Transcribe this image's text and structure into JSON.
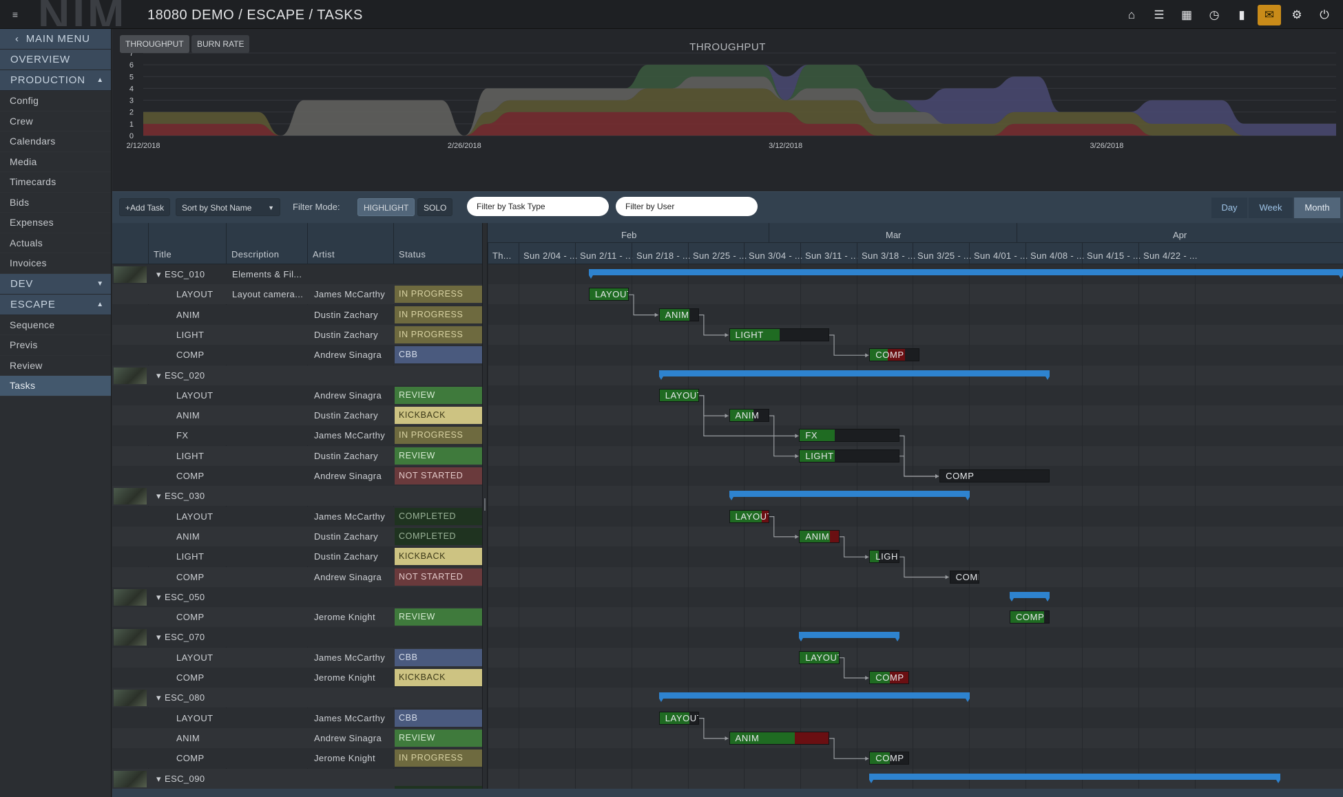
{
  "topbar": {
    "logo": "NIM",
    "breadcrumb": "18080 DEMO / ESCAPE / TASKS",
    "icons": [
      "home-icon",
      "list-icon",
      "calendar-icon",
      "clock-icon",
      "bookmark-icon",
      "mail-icon",
      "gear-icon",
      "power-icon"
    ]
  },
  "sidebar": {
    "main_menu": "MAIN MENU",
    "overview": "OVERVIEW",
    "production": "PRODUCTION",
    "production_items": [
      "Config",
      "Crew",
      "Calendars",
      "Media",
      "Timecards",
      "Bids",
      "Expenses",
      "Actuals",
      "Invoices"
    ],
    "dev": "DEV",
    "escape": "ESCAPE",
    "escape_items": [
      "Sequence",
      "Previs",
      "Review",
      "Tasks"
    ],
    "active_item": "Tasks"
  },
  "chart_tabs": {
    "throughput": "THROUGHPUT",
    "burn_rate": "BURN RATE",
    "active": "THROUGHPUT"
  },
  "chart_data": {
    "type": "area",
    "title": "THROUGHPUT",
    "x_tick_labels": [
      "2/12/2018",
      "2/26/2018",
      "3/12/2018",
      "3/26/2018"
    ],
    "ylim": [
      0,
      7
    ],
    "y_ticks": [
      0,
      1,
      2,
      3,
      4,
      5,
      6,
      7
    ],
    "grid": true,
    "x": [
      "2/12",
      "2/13",
      "2/14",
      "2/15",
      "2/16",
      "2/17",
      "2/18",
      "2/19",
      "2/20",
      "2/21",
      "2/22",
      "2/23",
      "2/24",
      "2/25",
      "2/26",
      "2/27",
      "2/28",
      "3/01",
      "3/02",
      "3/03",
      "3/04",
      "3/05",
      "3/06",
      "3/07",
      "3/08",
      "3/09",
      "3/10",
      "3/11",
      "3/12",
      "3/13",
      "3/14",
      "3/15",
      "3/16",
      "3/17",
      "3/18",
      "3/19",
      "3/20",
      "3/21",
      "3/22",
      "3/23",
      "3/24",
      "3/25",
      "3/26",
      "3/27",
      "3/28",
      "3/29",
      "3/30",
      "3/31",
      "4/01",
      "4/02",
      "4/03",
      "4/04",
      "4/05"
    ],
    "series": [
      {
        "color": "#7a2e30",
        "values": [
          1,
          1,
          1,
          1,
          1,
          1,
          0,
          0,
          0,
          0,
          0,
          0,
          0,
          0,
          0,
          1,
          2,
          2,
          2,
          2,
          2,
          2,
          2,
          2,
          2,
          2,
          2,
          2,
          2,
          1,
          1,
          1,
          0,
          0,
          0,
          0,
          0,
          0,
          1,
          1,
          1,
          1,
          1,
          1,
          0,
          0,
          0,
          0,
          0,
          0,
          0,
          0,
          0
        ]
      },
      {
        "color": "#5e5a34",
        "values": [
          1,
          1,
          1,
          1,
          1,
          1,
          0,
          0,
          0,
          0,
          0,
          0,
          0,
          0,
          0,
          1,
          1,
          1,
          1,
          1,
          1,
          1,
          2,
          2,
          2,
          2,
          2,
          2,
          1,
          2,
          2,
          2,
          1,
          1,
          1,
          1,
          1,
          1,
          1,
          1,
          1,
          1,
          1,
          1,
          1,
          1,
          1,
          1,
          0,
          0,
          0,
          0,
          0
        ]
      },
      {
        "color": "#646460",
        "values": [
          0,
          0,
          0,
          0,
          0,
          0,
          0,
          3,
          3,
          3,
          3,
          3,
          3,
          3,
          0,
          2,
          1,
          1,
          1,
          1,
          1,
          1,
          0,
          0,
          1,
          1,
          1,
          1,
          0,
          1,
          1,
          1,
          1,
          1,
          1,
          0,
          0,
          0,
          0,
          0,
          0,
          0,
          0,
          0,
          0,
          0,
          0,
          0,
          0,
          0,
          0,
          0,
          0
        ]
      },
      {
        "color": "#3b5a3e",
        "values": [
          0,
          0,
          0,
          0,
          0,
          0,
          0,
          0,
          0,
          0,
          0,
          0,
          0,
          0,
          0,
          0,
          0,
          0,
          0,
          0,
          0,
          0,
          2,
          2,
          1,
          1,
          1,
          1,
          0,
          2,
          2,
          2,
          2,
          1,
          0,
          0,
          0,
          0,
          0,
          0,
          0,
          0,
          0,
          0,
          0,
          0,
          0,
          0,
          0,
          0,
          0,
          0,
          0
        ]
      },
      {
        "color": "#4a4a72",
        "values": [
          0,
          0,
          0,
          0,
          0,
          0,
          0,
          0,
          0,
          0,
          0,
          0,
          0,
          0,
          0,
          0,
          0,
          0,
          0,
          0,
          0,
          0,
          0,
          0,
          0,
          0,
          0,
          0,
          2,
          0,
          0,
          0,
          0,
          0,
          1,
          3,
          3,
          3,
          3,
          3,
          0,
          0,
          0,
          0,
          2,
          2,
          2,
          2,
          1,
          1,
          1,
          1,
          1
        ]
      }
    ]
  },
  "toolbar": {
    "add_task": "Add Task",
    "sort": "Sort by Shot Name",
    "filter_mode_label": "Filter Mode:",
    "highlight": "HIGHLIGHT",
    "solo": "SOLO",
    "filter_task_type": "Filter by Task Type",
    "filter_user": "Filter by User",
    "views": [
      "Day",
      "Week",
      "Month"
    ],
    "active_view": "Month"
  },
  "grid": {
    "columns": [
      "Title",
      "Description",
      "Artist",
      "Status"
    ],
    "rows": [
      {
        "kind": "shot",
        "title": "ESC_010",
        "description": "Elements & Fil...",
        "artist": "",
        "status": ""
      },
      {
        "kind": "task",
        "title": "LAYOUT",
        "description": "Layout camera...",
        "artist": "James McCarthy",
        "status": "IN PROGRESS"
      },
      {
        "kind": "task",
        "title": "ANIM",
        "description": "",
        "artist": "Dustin Zachary",
        "status": "IN PROGRESS"
      },
      {
        "kind": "task",
        "title": "LIGHT",
        "description": "",
        "artist": "Dustin Zachary",
        "status": "IN PROGRESS"
      },
      {
        "kind": "task",
        "title": "COMP",
        "description": "",
        "artist": "Andrew Sinagra",
        "status": "CBB"
      },
      {
        "kind": "shot",
        "title": "ESC_020",
        "description": "",
        "artist": "",
        "status": ""
      },
      {
        "kind": "task",
        "title": "LAYOUT",
        "description": "",
        "artist": "Andrew Sinagra",
        "status": "REVIEW"
      },
      {
        "kind": "task",
        "title": "ANIM",
        "description": "",
        "artist": "Dustin Zachary",
        "status": "KICKBACK"
      },
      {
        "kind": "task",
        "title": "FX",
        "description": "",
        "artist": "James McCarthy",
        "status": "IN PROGRESS"
      },
      {
        "kind": "task",
        "title": "LIGHT",
        "description": "",
        "artist": "Dustin Zachary",
        "status": "REVIEW"
      },
      {
        "kind": "task",
        "title": "COMP",
        "description": "",
        "artist": "Andrew Sinagra",
        "status": "NOT STARTED"
      },
      {
        "kind": "shot",
        "title": "ESC_030",
        "description": "",
        "artist": "",
        "status": ""
      },
      {
        "kind": "task",
        "title": "LAYOUT",
        "description": "",
        "artist": "James McCarthy",
        "status": "COMPLETED"
      },
      {
        "kind": "task",
        "title": "ANIM",
        "description": "",
        "artist": "Dustin Zachary",
        "status": "COMPLETED"
      },
      {
        "kind": "task",
        "title": "LIGHT",
        "description": "",
        "artist": "Dustin Zachary",
        "status": "KICKBACK"
      },
      {
        "kind": "task",
        "title": "COMP",
        "description": "",
        "artist": "Andrew Sinagra",
        "status": "NOT STARTED"
      },
      {
        "kind": "shot",
        "title": "ESC_050",
        "description": "",
        "artist": "",
        "status": ""
      },
      {
        "kind": "task",
        "title": "COMP",
        "description": "",
        "artist": "Jerome Knight",
        "status": "REVIEW"
      },
      {
        "kind": "shot",
        "title": "ESC_070",
        "description": "",
        "artist": "",
        "status": ""
      },
      {
        "kind": "task",
        "title": "LAYOUT",
        "description": "",
        "artist": "James McCarthy",
        "status": "CBB"
      },
      {
        "kind": "task",
        "title": "COMP",
        "description": "",
        "artist": "Jerome Knight",
        "status": "KICKBACK"
      },
      {
        "kind": "shot",
        "title": "ESC_080",
        "description": "",
        "artist": "",
        "status": ""
      },
      {
        "kind": "task",
        "title": "LAYOUT",
        "description": "",
        "artist": "James McCarthy",
        "status": "CBB"
      },
      {
        "kind": "task",
        "title": "ANIM",
        "description": "",
        "artist": "Andrew Sinagra",
        "status": "REVIEW"
      },
      {
        "kind": "task",
        "title": "COMP",
        "description": "",
        "artist": "Jerome Knight",
        "status": "IN PROGRESS"
      },
      {
        "kind": "shot",
        "title": "ESC_090",
        "description": "",
        "artist": "",
        "status": ""
      }
    ]
  },
  "status_colors": {
    "IN PROGRESS": {
      "bg": "#6e6a3f",
      "fg": "#d8d2a2"
    },
    "CBB": {
      "bg": "#4a5a7e",
      "fg": "#d7deea"
    },
    "REVIEW": {
      "bg": "#3f7a3c",
      "fg": "#d7ecd3"
    },
    "KICKBACK": {
      "bg": "#cdc382",
      "fg": "#3b3817"
    },
    "NOT STARTED": {
      "bg": "#6a3a3c",
      "fg": "#e4caca"
    },
    "COMPLETED": {
      "bg": "#1f3320",
      "fg": "#9bb398"
    }
  },
  "gantt": {
    "months": [
      "Feb",
      "Mar",
      "Apr"
    ],
    "weeks": [
      "Th...",
      "Sun 2/04 - ...",
      "Sun 2/11 - ...",
      "Sun 2/18 - ...",
      "Sun 2/25 - ...",
      "Sun 3/04 - ...",
      "Sun 3/11 - ...",
      "Sun 3/18 - ...",
      "Sun 3/25 - ...",
      "Sun 4/01 - ...",
      "Sun 4/08 - ...",
      "Sun 4/15 - ...",
      "Sun 4/22 - ..."
    ],
    "summaries": [
      {
        "row": 0,
        "start": "2/11",
        "end": "4/30"
      },
      {
        "row": 5,
        "start": "2/18",
        "end": "3/29"
      },
      {
        "row": 11,
        "start": "2/25",
        "end": "3/21"
      },
      {
        "row": 16,
        "start": "3/25",
        "end": "3/29"
      },
      {
        "row": 18,
        "start": "3/04",
        "end": "3/14"
      },
      {
        "row": 21,
        "start": "2/18",
        "end": "3/21"
      },
      {
        "row": 25,
        "start": "3/11",
        "end": "4/21"
      }
    ],
    "tasks": [
      {
        "row": 1,
        "label": "LAYOUT",
        "start": "2/11",
        "end": "2/15",
        "progress": 1.0,
        "overdue": 0
      },
      {
        "row": 2,
        "label": "ANIM",
        "start": "2/18",
        "end": "2/22",
        "progress": 0.75,
        "overdue": 0
      },
      {
        "row": 3,
        "label": "LIGHT",
        "start": "2/25",
        "end": "3/07",
        "progress": 0.5,
        "overdue": 0
      },
      {
        "row": 4,
        "label": "COMP",
        "start": "3/11",
        "end": "3/16",
        "progress": 0.35,
        "overdue": 0.35
      },
      {
        "row": 6,
        "label": "LAYOUT",
        "start": "2/18",
        "end": "2/22",
        "progress": 1.0,
        "overdue": 0
      },
      {
        "row": 7,
        "label": "ANIM",
        "start": "2/25",
        "end": "3/01",
        "progress": 0.6,
        "overdue": 0
      },
      {
        "row": 8,
        "label": "FX",
        "start": "3/04",
        "end": "3/14",
        "progress": 0.35,
        "overdue": 0
      },
      {
        "row": 9,
        "label": "LIGHT",
        "start": "3/04",
        "end": "3/14",
        "progress": 0.35,
        "overdue": 0
      },
      {
        "row": 10,
        "label": "COMP",
        "start": "3/18",
        "end": "3/29",
        "progress": 0,
        "overdue": 0
      },
      {
        "row": 12,
        "label": "LAYOUT",
        "start": "2/25",
        "end": "3/01",
        "progress": 0.8,
        "overdue": 0.2
      },
      {
        "row": 13,
        "label": "ANIM",
        "start": "3/04",
        "end": "3/08",
        "progress": 0.75,
        "overdue": 0.25
      },
      {
        "row": 14,
        "label": "LIGH",
        "start": "3/11",
        "end": "3/14",
        "progress": 0.3,
        "overdue": 0
      },
      {
        "row": 15,
        "label": "COMP",
        "start": "3/19",
        "end": "3/22",
        "progress": 0,
        "overdue": 0
      },
      {
        "row": 17,
        "label": "COMP",
        "start": "3/25",
        "end": "3/29",
        "progress": 0.85,
        "overdue": 0
      },
      {
        "row": 19,
        "label": "LAYOUT",
        "start": "3/04",
        "end": "3/08",
        "progress": 1.0,
        "overdue": 0
      },
      {
        "row": 20,
        "label": "COMP",
        "start": "3/11",
        "end": "3/15",
        "progress": 0.5,
        "overdue": 0.5
      },
      {
        "row": 22,
        "label": "LAYOUT",
        "start": "2/18",
        "end": "2/22",
        "progress": 0.75,
        "overdue": 0
      },
      {
        "row": 23,
        "label": "ANIM",
        "start": "2/25",
        "end": "3/07",
        "progress": 0.65,
        "overdue": 0.35
      },
      {
        "row": 24,
        "label": "COMP",
        "start": "3/11",
        "end": "3/15",
        "progress": 0.5,
        "overdue": 0
      }
    ],
    "dependencies": [
      [
        1,
        2
      ],
      [
        2,
        3
      ],
      [
        3,
        4
      ],
      [
        6,
        7
      ],
      [
        6,
        8
      ],
      [
        7,
        9
      ],
      [
        8,
        10
      ],
      [
        9,
        10
      ],
      [
        12,
        13
      ],
      [
        13,
        14
      ],
      [
        14,
        15
      ],
      [
        19,
        20
      ],
      [
        22,
        23
      ],
      [
        23,
        24
      ]
    ]
  }
}
